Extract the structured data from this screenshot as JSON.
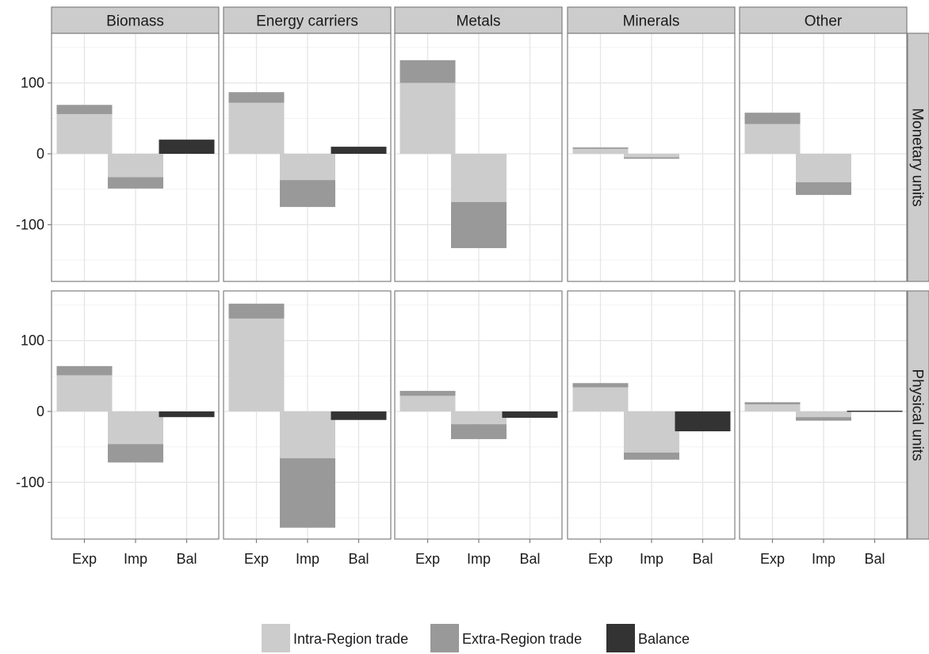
{
  "chart_data": {
    "type": "bar",
    "stacked": true,
    "title": "",
    "xlabel": "",
    "ylabel": "",
    "facet_columns": [
      "Biomass",
      "Energy carriers",
      "Metals",
      "Minerals",
      "Other"
    ],
    "facet_rows": [
      "Monetary units",
      "Physical units"
    ],
    "categories": [
      "Exp",
      "Imp",
      "Bal"
    ],
    "ylim": [
      -180,
      170
    ],
    "y_ticks": [
      -100,
      0,
      100
    ],
    "y_tick_labels": [
      "-100",
      "0",
      "100"
    ],
    "grid": true,
    "legend_position": "bottom",
    "colors": {
      "Intra-Region trade": "#cccccc",
      "Extra-Region trade": "#999999",
      "Balance": "#333333"
    },
    "series": [
      {
        "name": "Intra-Region trade",
        "color": "#cccccc"
      },
      {
        "name": "Extra-Region trade",
        "color": "#999999"
      },
      {
        "name": "Balance",
        "color": "#333333"
      }
    ],
    "panels": [
      {
        "row": "Monetary units",
        "column": "Biomass",
        "exp": {
          "intra": 56,
          "extra": 13
        },
        "imp": {
          "intra": -33,
          "extra": -16
        },
        "bal": 20
      },
      {
        "row": "Monetary units",
        "column": "Energy carriers",
        "exp": {
          "intra": 72,
          "extra": 15
        },
        "imp": {
          "intra": -37,
          "extra": -38
        },
        "bal": 10
      },
      {
        "row": "Monetary units",
        "column": "Metals",
        "exp": {
          "intra": 100,
          "extra": 32
        },
        "imp": {
          "intra": -68,
          "extra": -65
        },
        "bal": 0
      },
      {
        "row": "Monetary units",
        "column": "Minerals",
        "exp": {
          "intra": 7,
          "extra": 2
        },
        "imp": {
          "intra": -5,
          "extra": -2
        },
        "bal": 0
      },
      {
        "row": "Monetary units",
        "column": "Other",
        "exp": {
          "intra": 42,
          "extra": 16
        },
        "imp": {
          "intra": -40,
          "extra": -18
        },
        "bal": 0
      },
      {
        "row": "Physical units",
        "column": "Biomass",
        "exp": {
          "intra": 51,
          "extra": 13
        },
        "imp": {
          "intra": -46,
          "extra": -26
        },
        "bal": -8
      },
      {
        "row": "Physical units",
        "column": "Energy carriers",
        "exp": {
          "intra": 131,
          "extra": 21
        },
        "imp": {
          "intra": -66,
          "extra": -98
        },
        "bal": -12
      },
      {
        "row": "Physical units",
        "column": "Metals",
        "exp": {
          "intra": 22,
          "extra": 7
        },
        "imp": {
          "intra": -18,
          "extra": -21
        },
        "bal": -9
      },
      {
        "row": "Physical units",
        "column": "Minerals",
        "exp": {
          "intra": 34,
          "extra": 6
        },
        "imp": {
          "intra": -58,
          "extra": -10
        },
        "bal": -28
      },
      {
        "row": "Physical units",
        "column": "Other",
        "exp": {
          "intra": 10,
          "extra": 3
        },
        "imp": {
          "intra": -8,
          "extra": -5
        },
        "bal": 0.5
      }
    ]
  }
}
